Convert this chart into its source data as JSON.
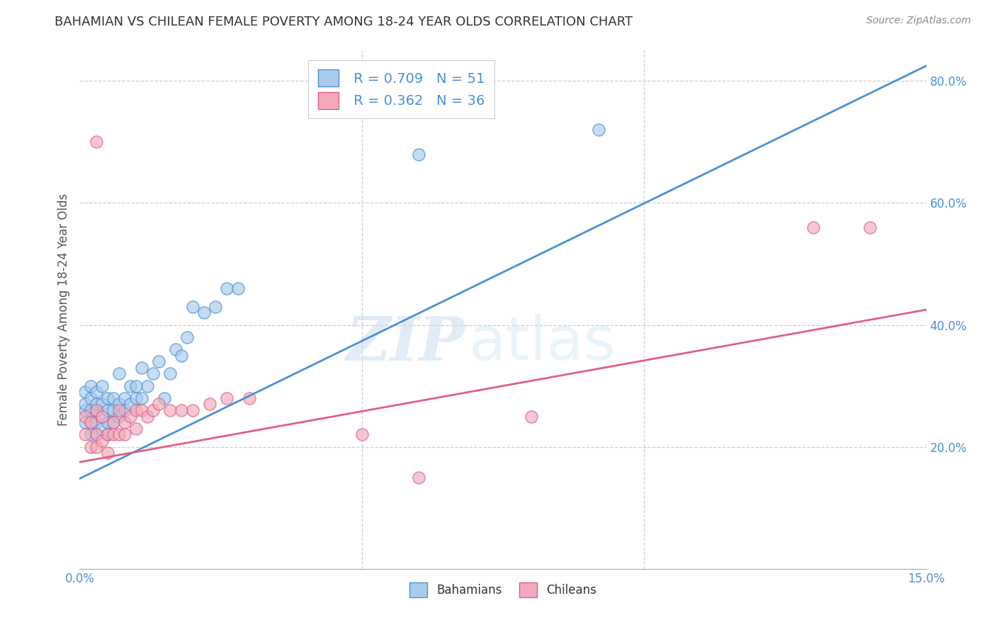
{
  "title": "BAHAMIAN VS CHILEAN FEMALE POVERTY AMONG 18-24 YEAR OLDS CORRELATION CHART",
  "source": "Source: ZipAtlas.com",
  "ylabel": "Female Poverty Among 18-24 Year Olds",
  "xlim": [
    0.0,
    0.15
  ],
  "ylim": [
    0.0,
    0.85
  ],
  "xticks": [
    0.0,
    0.05,
    0.1,
    0.15
  ],
  "xticklabels": [
    "0.0%",
    "",
    "",
    "15.0%"
  ],
  "yticks_right": [
    0.2,
    0.4,
    0.6,
    0.8
  ],
  "yticklabels_right": [
    "20.0%",
    "40.0%",
    "60.0%",
    "80.0%"
  ],
  "legend_r1": "R = 0.709",
  "legend_n1": "N = 51",
  "legend_r2": "R = 0.362",
  "legend_n2": "N = 36",
  "blue_color": "#A8CCEA",
  "pink_color": "#F2AABB",
  "line_blue": "#4A90D9",
  "line_pink": "#E06080",
  "label1": "Bahamians",
  "label2": "Chileans",
  "bahamians_x": [
    0.001,
    0.001,
    0.001,
    0.001,
    0.002,
    0.002,
    0.002,
    0.002,
    0.002,
    0.003,
    0.003,
    0.003,
    0.003,
    0.003,
    0.004,
    0.004,
    0.004,
    0.004,
    0.005,
    0.005,
    0.005,
    0.005,
    0.006,
    0.006,
    0.006,
    0.007,
    0.007,
    0.007,
    0.008,
    0.008,
    0.009,
    0.009,
    0.01,
    0.01,
    0.011,
    0.011,
    0.012,
    0.013,
    0.014,
    0.015,
    0.016,
    0.017,
    0.018,
    0.019,
    0.02,
    0.022,
    0.024,
    0.026,
    0.028,
    0.06,
    0.092
  ],
  "bahamians_y": [
    0.24,
    0.26,
    0.27,
    0.29,
    0.22,
    0.24,
    0.26,
    0.28,
    0.3,
    0.22,
    0.24,
    0.26,
    0.27,
    0.29,
    0.23,
    0.25,
    0.27,
    0.3,
    0.22,
    0.24,
    0.26,
    0.28,
    0.24,
    0.26,
    0.28,
    0.25,
    0.27,
    0.32,
    0.26,
    0.28,
    0.27,
    0.3,
    0.28,
    0.3,
    0.28,
    0.33,
    0.3,
    0.32,
    0.34,
    0.28,
    0.32,
    0.36,
    0.35,
    0.38,
    0.43,
    0.42,
    0.43,
    0.46,
    0.46,
    0.68,
    0.72
  ],
  "chileans_x": [
    0.001,
    0.001,
    0.002,
    0.002,
    0.003,
    0.003,
    0.003,
    0.004,
    0.004,
    0.005,
    0.005,
    0.006,
    0.006,
    0.007,
    0.007,
    0.008,
    0.008,
    0.009,
    0.01,
    0.01,
    0.011,
    0.012,
    0.013,
    0.014,
    0.016,
    0.018,
    0.02,
    0.023,
    0.026,
    0.03,
    0.05,
    0.06,
    0.08,
    0.13,
    0.14,
    0.003
  ],
  "chileans_y": [
    0.22,
    0.25,
    0.2,
    0.24,
    0.2,
    0.22,
    0.26,
    0.21,
    0.25,
    0.19,
    0.22,
    0.22,
    0.24,
    0.22,
    0.26,
    0.22,
    0.24,
    0.25,
    0.23,
    0.26,
    0.26,
    0.25,
    0.26,
    0.27,
    0.26,
    0.26,
    0.26,
    0.27,
    0.28,
    0.28,
    0.22,
    0.15,
    0.25,
    0.56,
    0.56,
    0.7
  ],
  "watermark_zip": "ZIP",
  "watermark_atlas": "atlas",
  "background_color": "#FFFFFF",
  "grid_color": "#CCCCCC"
}
